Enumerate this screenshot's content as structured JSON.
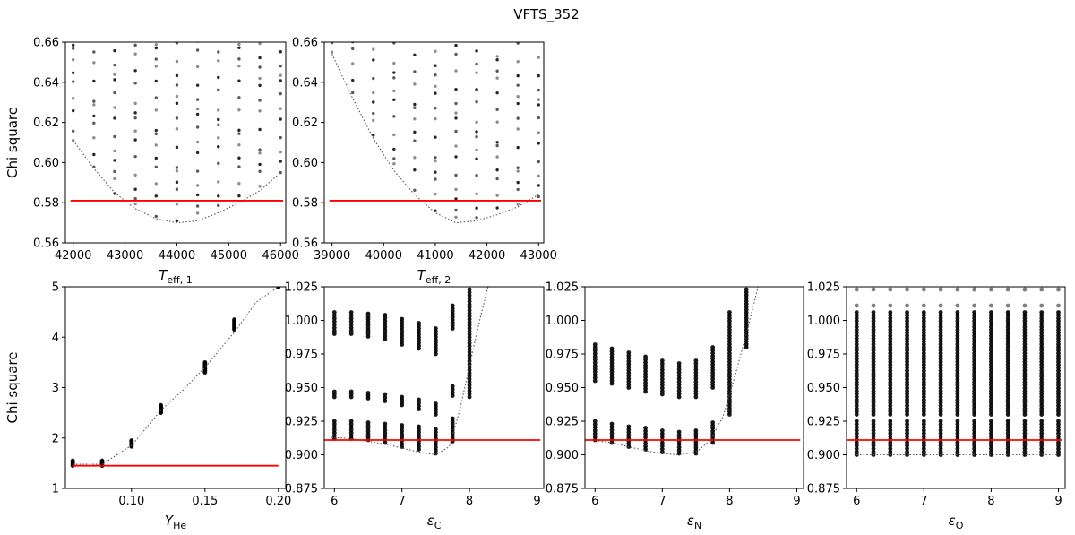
{
  "figure_title": "VFTS_352",
  "colors": {
    "threshold": "#ff0000",
    "points": "#000000",
    "fit": "#555555"
  },
  "chart_data": [
    {
      "id": "teff1",
      "type": "scatter",
      "xlabel_main": "T",
      "xlabel_sub": "eff, 1",
      "ylabel": "Chi square",
      "xlim": [
        41850,
        46100
      ],
      "ylim": [
        0.56,
        0.66
      ],
      "xticks": [
        42000,
        43000,
        44000,
        45000,
        46000
      ],
      "xtick_labels": [
        "42000",
        "43000",
        "44000",
        "45000",
        "46000"
      ],
      "yticks": [
        0.56,
        0.58,
        0.6,
        0.62,
        0.64,
        0.66
      ],
      "ytick_labels": [
        "0.56",
        "0.58",
        "0.60",
        "0.62",
        "0.64",
        "0.66"
      ],
      "threshold": 0.581,
      "threshold_range": [
        41950,
        46050
      ],
      "x_grid": [
        42000,
        42400,
        42800,
        43200,
        43600,
        44000,
        44400,
        44800,
        45200,
        45600,
        46000
      ],
      "column_min": [
        0.611,
        0.596,
        0.584,
        0.577,
        0.572,
        0.571,
        0.573,
        0.578,
        0.581,
        0.587,
        0.595
      ],
      "column_max": 0.66,
      "fit_curve": {
        "x": [
          42000,
          42400,
          42800,
          43200,
          43600,
          44000,
          44400,
          44800,
          45200,
          45600,
          46000
        ],
        "y": [
          0.611,
          0.597,
          0.585,
          0.577,
          0.572,
          0.57,
          0.571,
          0.575,
          0.58,
          0.586,
          0.595
        ]
      }
    },
    {
      "id": "teff2",
      "type": "scatter",
      "xlabel_main": "T",
      "xlabel_sub": "eff, 2",
      "ylabel": "",
      "xlim": [
        38850,
        43100
      ],
      "ylim": [
        0.56,
        0.66
      ],
      "xticks": [
        39000,
        40000,
        41000,
        42000,
        43000
      ],
      "xtick_labels": [
        "39000",
        "40000",
        "41000",
        "42000",
        "43000"
      ],
      "yticks": [
        0.56,
        0.58,
        0.6,
        0.62,
        0.64,
        0.66
      ],
      "ytick_labels": [
        "0.56",
        "0.58",
        "0.60",
        "0.62",
        "0.64",
        "0.66"
      ],
      "threshold": 0.581,
      "threshold_range": [
        38950,
        43050
      ],
      "x_grid": [
        39000,
        39400,
        39800,
        40200,
        40600,
        41000,
        41400,
        41800,
        42200,
        42600,
        43000
      ],
      "column_min": [
        0.655,
        0.633,
        0.613,
        0.597,
        0.585,
        0.576,
        0.571,
        0.572,
        0.575,
        0.578,
        0.583
      ],
      "column_max": 0.66,
      "fit_curve": {
        "x": [
          39000,
          39400,
          39800,
          40200,
          40600,
          41000,
          41400,
          41800,
          42200,
          42600,
          43000
        ],
        "y": [
          0.654,
          0.632,
          0.612,
          0.596,
          0.584,
          0.575,
          0.57,
          0.571,
          0.574,
          0.578,
          0.584
        ]
      }
    },
    {
      "id": "yhe",
      "type": "scatter",
      "xlabel_main": "Y",
      "xlabel_sub": "He",
      "ylabel": "Chi square",
      "xlim": [
        0.055,
        0.205
      ],
      "ylim": [
        1,
        5
      ],
      "xticks": [
        0.1,
        0.15,
        0.2
      ],
      "xtick_labels": [
        "0.10",
        "0.15",
        "0.20"
      ],
      "yticks": [
        1,
        2,
        3,
        4,
        5
      ],
      "ytick_labels": [
        "1",
        "2",
        "3",
        "4",
        "5"
      ],
      "threshold": 1.45,
      "threshold_range": [
        0.06,
        0.2
      ],
      "x_grid": [
        0.06,
        0.08,
        0.1,
        0.12,
        0.15,
        0.17,
        0.2
      ],
      "column_range": [
        [
          1.45,
          1.55
        ],
        [
          1.45,
          1.55
        ],
        [
          1.83,
          1.95
        ],
        [
          2.5,
          2.65
        ],
        [
          3.3,
          3.5
        ],
        [
          4.15,
          4.35
        ],
        [
          5.0,
          5.0
        ]
      ],
      "fit_curve": {
        "x": [
          0.06,
          0.08,
          0.1,
          0.12,
          0.135,
          0.15,
          0.17,
          0.185,
          0.2
        ],
        "y": [
          1.48,
          1.48,
          1.85,
          2.55,
          2.95,
          3.4,
          4.1,
          4.7,
          5.0
        ]
      }
    },
    {
      "id": "epsc",
      "type": "scatter",
      "xlabel_main": "ε",
      "xlabel_sub": "C",
      "ylabel": "",
      "xlim": [
        5.85,
        9.1
      ],
      "ylim": [
        0.875,
        1.025
      ],
      "xticks": [
        6,
        7,
        8,
        9
      ],
      "xtick_labels": [
        "6",
        "7",
        "8",
        "9"
      ],
      "yticks": [
        0.875,
        0.9,
        0.925,
        0.95,
        0.975,
        1.0,
        1.025
      ],
      "ytick_labels": [
        "0.875",
        "0.900",
        "0.925",
        "0.950",
        "0.975",
        "1.000",
        "1.025"
      ],
      "threshold": 0.911,
      "threshold_range": [
        5.85,
        9.05
      ],
      "x_grid": [
        6.0,
        6.25,
        6.5,
        6.75,
        7.0,
        7.25,
        7.5,
        7.75
      ],
      "groups": [
        {
          "lo": [
            0.912,
            0.912,
            0.911,
            0.909,
            0.906,
            0.904,
            0.901,
            0.91
          ],
          "hi": [
            0.925,
            0.925,
            0.924,
            0.923,
            0.922,
            0.921,
            0.919,
            0.927
          ]
        },
        {
          "lo": [
            0.943,
            0.943,
            0.942,
            0.94,
            0.937,
            0.934,
            0.93,
            0.944
          ],
          "hi": [
            0.947,
            0.947,
            0.946,
            0.945,
            0.943,
            0.941,
            0.938,
            0.951
          ]
        },
        {
          "lo": [
            0.99,
            0.99,
            0.988,
            0.986,
            0.982,
            0.979,
            0.975,
            0.994
          ],
          "hi": [
            1.006,
            1.006,
            1.005,
            1.004,
            1.001,
            0.998,
            0.994,
            1.011
          ]
        }
      ],
      "tail": {
        "x": 8.0,
        "lo": 0.943,
        "hi": 1.023
      },
      "fit_curve": {
        "x": [
          5.95,
          6.25,
          6.5,
          6.75,
          7.0,
          7.25,
          7.5,
          7.7,
          7.85,
          8.0,
          8.15,
          8.3
        ],
        "y": [
          0.913,
          0.912,
          0.91,
          0.908,
          0.905,
          0.902,
          0.9,
          0.906,
          0.932,
          0.966,
          1.0,
          1.03
        ]
      }
    },
    {
      "id": "epsn",
      "type": "scatter",
      "xlabel_main": "ε",
      "xlabel_sub": "N",
      "ylabel": "",
      "xlim": [
        5.85,
        9.1
      ],
      "ylim": [
        0.875,
        1.025
      ],
      "xticks": [
        6,
        7,
        8,
        9
      ],
      "xtick_labels": [
        "6",
        "7",
        "8",
        "9"
      ],
      "yticks": [
        0.875,
        0.9,
        0.925,
        0.95,
        0.975,
        1.0,
        1.025
      ],
      "ytick_labels": [
        "0.875",
        "0.900",
        "0.925",
        "0.950",
        "0.975",
        "1.000",
        "1.025"
      ],
      "threshold": 0.911,
      "threshold_range": [
        5.85,
        9.05
      ],
      "x_grid": [
        6.0,
        6.25,
        6.5,
        6.75,
        7.0,
        7.25,
        7.5,
        7.75
      ],
      "groups": [
        {
          "lo": [
            0.911,
            0.909,
            0.906,
            0.904,
            0.902,
            0.901,
            0.901,
            0.909
          ],
          "hi": [
            0.925,
            0.923,
            0.921,
            0.92,
            0.918,
            0.917,
            0.918,
            0.924
          ]
        },
        {
          "lo": [
            0.955,
            0.953,
            0.95,
            0.947,
            0.945,
            0.943,
            0.943,
            0.95
          ],
          "hi": [
            0.982,
            0.979,
            0.976,
            0.973,
            0.97,
            0.968,
            0.97,
            0.98
          ]
        }
      ],
      "tail": {
        "x": 8.0,
        "lo": 0.93,
        "hi": 1.006,
        "x2": 8.25,
        "lo2": 0.98,
        "hi2": 1.023
      },
      "fit_curve": {
        "x": [
          5.95,
          6.25,
          6.5,
          6.75,
          7.0,
          7.25,
          7.5,
          7.7,
          7.9,
          8.1,
          8.3,
          8.45
        ],
        "y": [
          0.911,
          0.909,
          0.906,
          0.903,
          0.901,
          0.9,
          0.902,
          0.91,
          0.928,
          0.962,
          1.0,
          1.03
        ]
      }
    },
    {
      "id": "epso",
      "type": "scatter",
      "xlabel_main": "ε",
      "xlabel_sub": "O",
      "ylabel": "",
      "xlim": [
        5.85,
        9.1
      ],
      "ylim": [
        0.875,
        1.025
      ],
      "xticks": [
        6,
        7,
        8,
        9
      ],
      "xtick_labels": [
        "6",
        "7",
        "8",
        "9"
      ],
      "yticks": [
        0.875,
        0.9,
        0.925,
        0.95,
        0.975,
        1.0,
        1.025
      ],
      "ytick_labels": [
        "0.875",
        "0.900",
        "0.925",
        "0.950",
        "0.975",
        "1.000",
        "1.025"
      ],
      "threshold": 0.911,
      "threshold_range": [
        5.85,
        9.05
      ],
      "x_grid": [
        6.0,
        6.25,
        6.5,
        6.75,
        7.0,
        7.25,
        7.5,
        7.75,
        8.0,
        8.25,
        8.5,
        8.75,
        9.0
      ],
      "groups": [
        {
          "lo": [
            0.9,
            0.9,
            0.9,
            0.9,
            0.9,
            0.9,
            0.9,
            0.9,
            0.9,
            0.9,
            0.9,
            0.9,
            0.9
          ],
          "hi": [
            0.925,
            0.925,
            0.925,
            0.925,
            0.925,
            0.925,
            0.925,
            0.925,
            0.925,
            0.925,
            0.925,
            0.925,
            0.925
          ]
        },
        {
          "lo": [
            0.93,
            0.93,
            0.93,
            0.93,
            0.93,
            0.93,
            0.93,
            0.93,
            0.93,
            0.93,
            0.93,
            0.93,
            0.93
          ],
          "hi": [
            1.006,
            1.006,
            1.006,
            1.006,
            1.006,
            1.006,
            1.006,
            1.006,
            1.006,
            1.006,
            1.006,
            1.006,
            1.006
          ]
        }
      ],
      "top_rows": [
        1.011,
        1.023
      ],
      "fit_curve": {
        "x": [
          6.0,
          9.0
        ],
        "y": [
          0.9,
          0.9
        ]
      }
    }
  ]
}
